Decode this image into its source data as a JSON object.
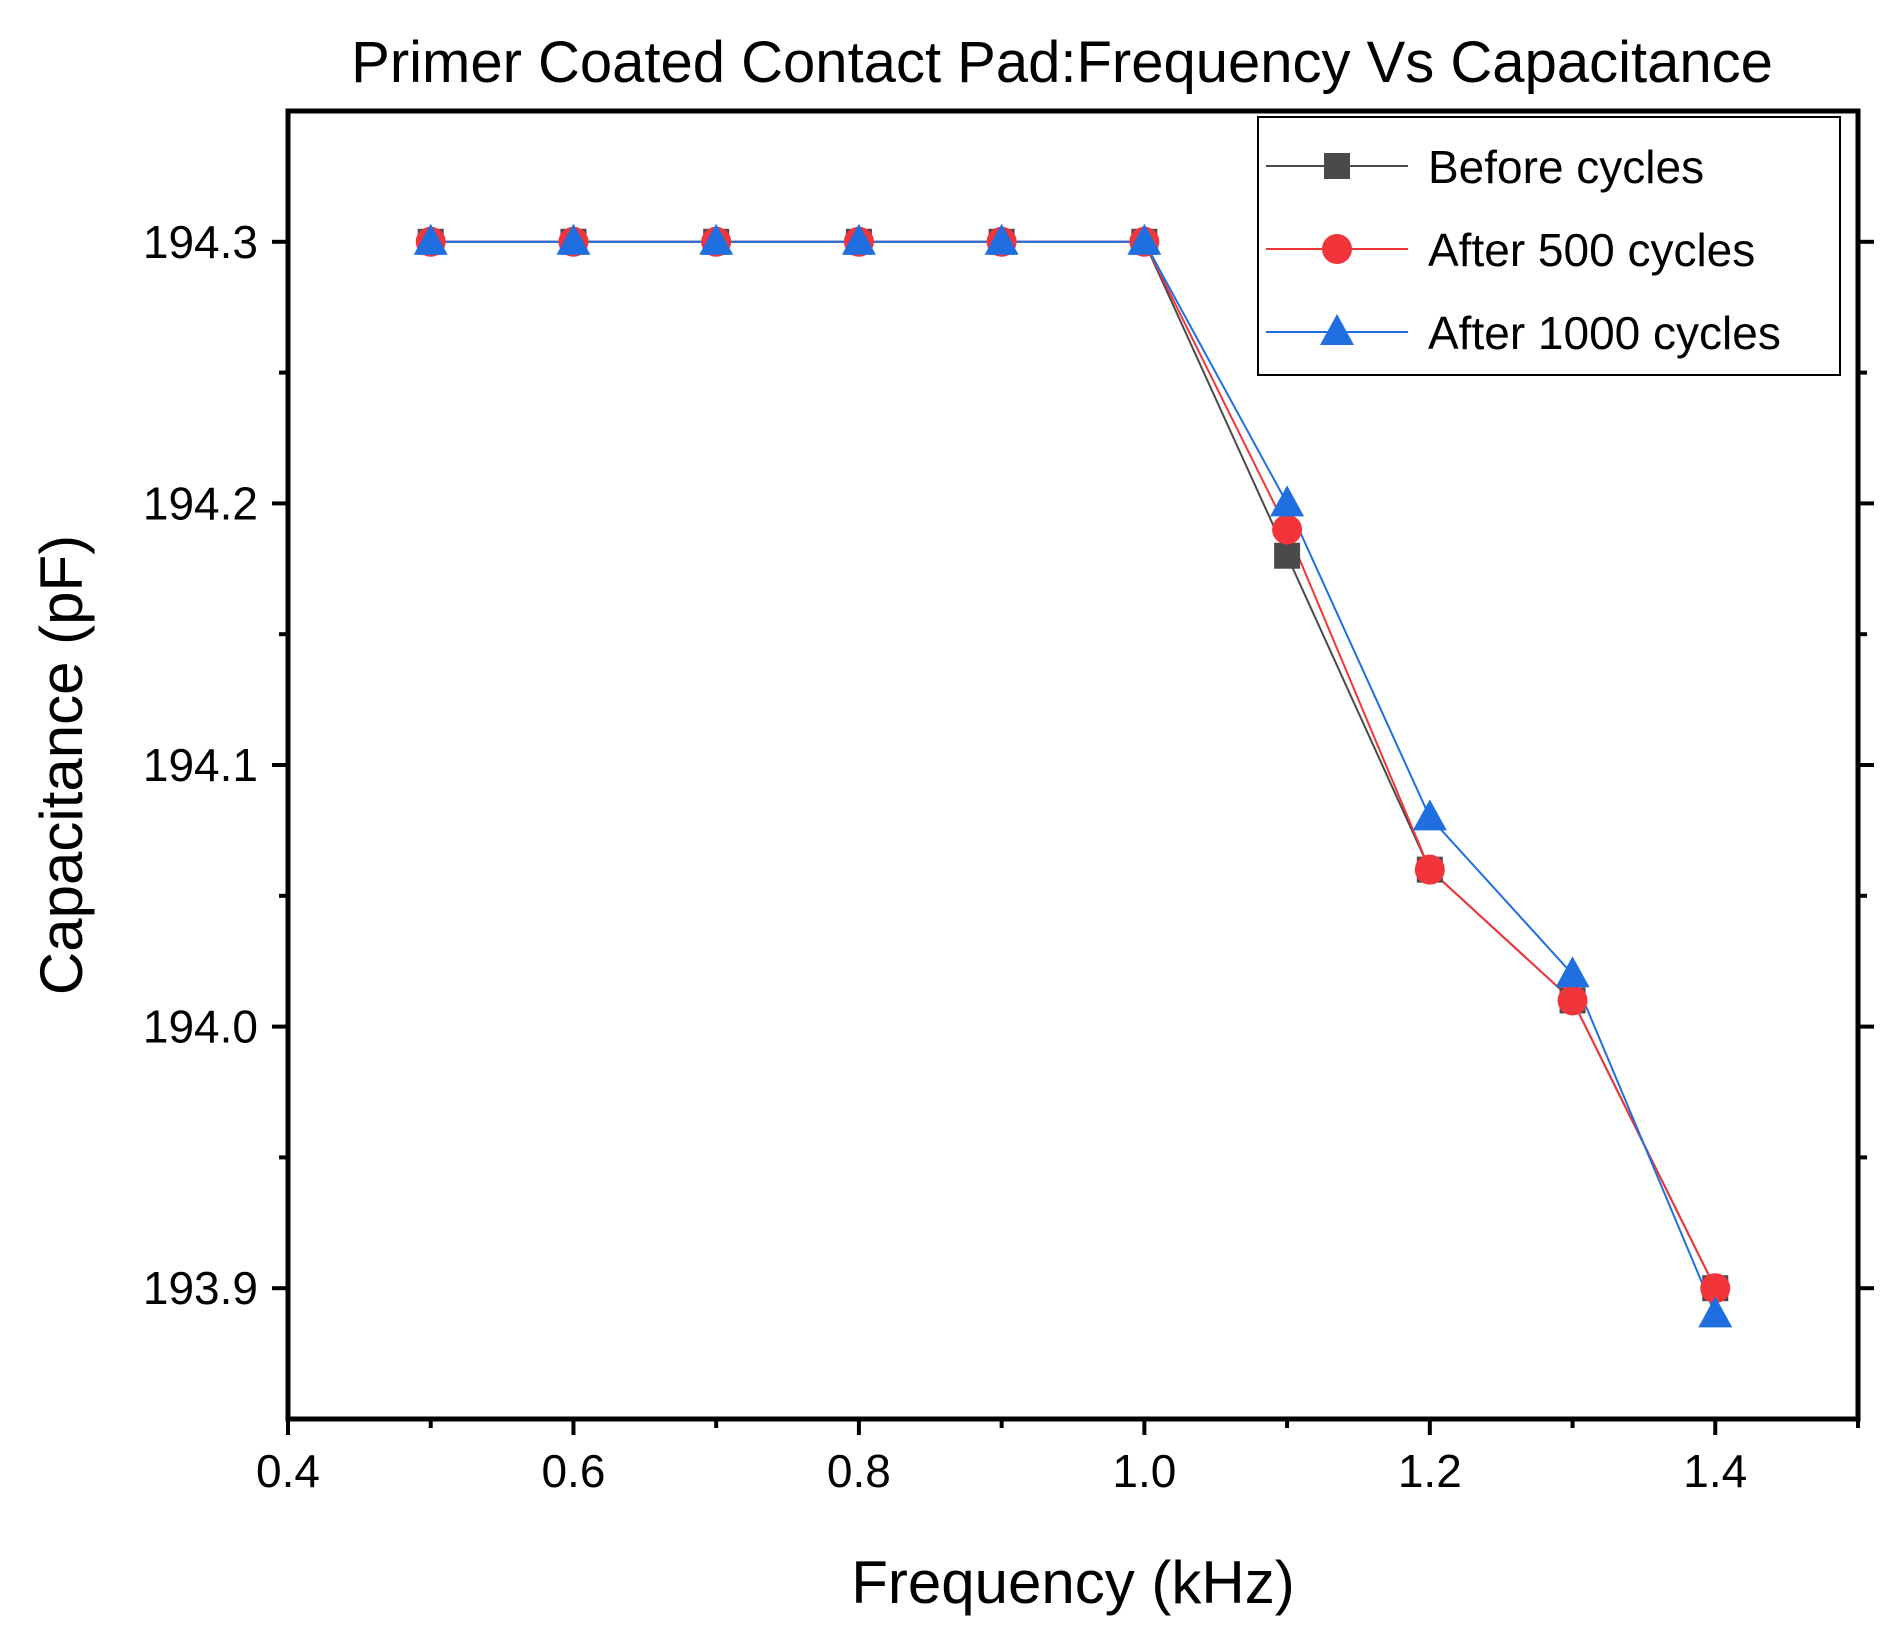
{
  "chart_data": {
    "type": "line",
    "title": "Primer Coated Contact Pad:Frequency Vs Capacitance",
    "xlabel": "Frequency (kHz)",
    "ylabel": "Capacitance (pF)",
    "xlim": [
      0.4,
      1.5
    ],
    "ylim": [
      193.85,
      194.35
    ],
    "x_ticks": [
      "0.4",
      "0.6",
      "0.8",
      "1.0",
      "1.2",
      "1.4"
    ],
    "y_ticks": [
      "193.9",
      "194.0",
      "194.1",
      "194.2",
      "194.3"
    ],
    "grid": false,
    "legend_position": "top-right",
    "x": [
      0.5,
      0.6,
      0.7,
      0.8,
      0.9,
      1.0,
      1.1,
      1.2,
      1.3,
      1.4
    ],
    "series": [
      {
        "name": "Before cycles",
        "color": "#4a4a4a",
        "marker": "square",
        "values": [
          194.3,
          194.3,
          194.3,
          194.3,
          194.3,
          194.3,
          194.18,
          194.06,
          194.01,
          193.9
        ]
      },
      {
        "name": "After 500 cycles",
        "color": "#f2353b",
        "marker": "circle",
        "values": [
          194.3,
          194.3,
          194.3,
          194.3,
          194.3,
          194.3,
          194.19,
          194.06,
          194.01,
          193.9
        ]
      },
      {
        "name": "After 1000 cycles",
        "color": "#1f6fe0",
        "marker": "triangle",
        "values": [
          194.3,
          194.3,
          194.3,
          194.3,
          194.3,
          194.3,
          194.2,
          194.08,
          194.02,
          193.89
        ]
      }
    ]
  }
}
